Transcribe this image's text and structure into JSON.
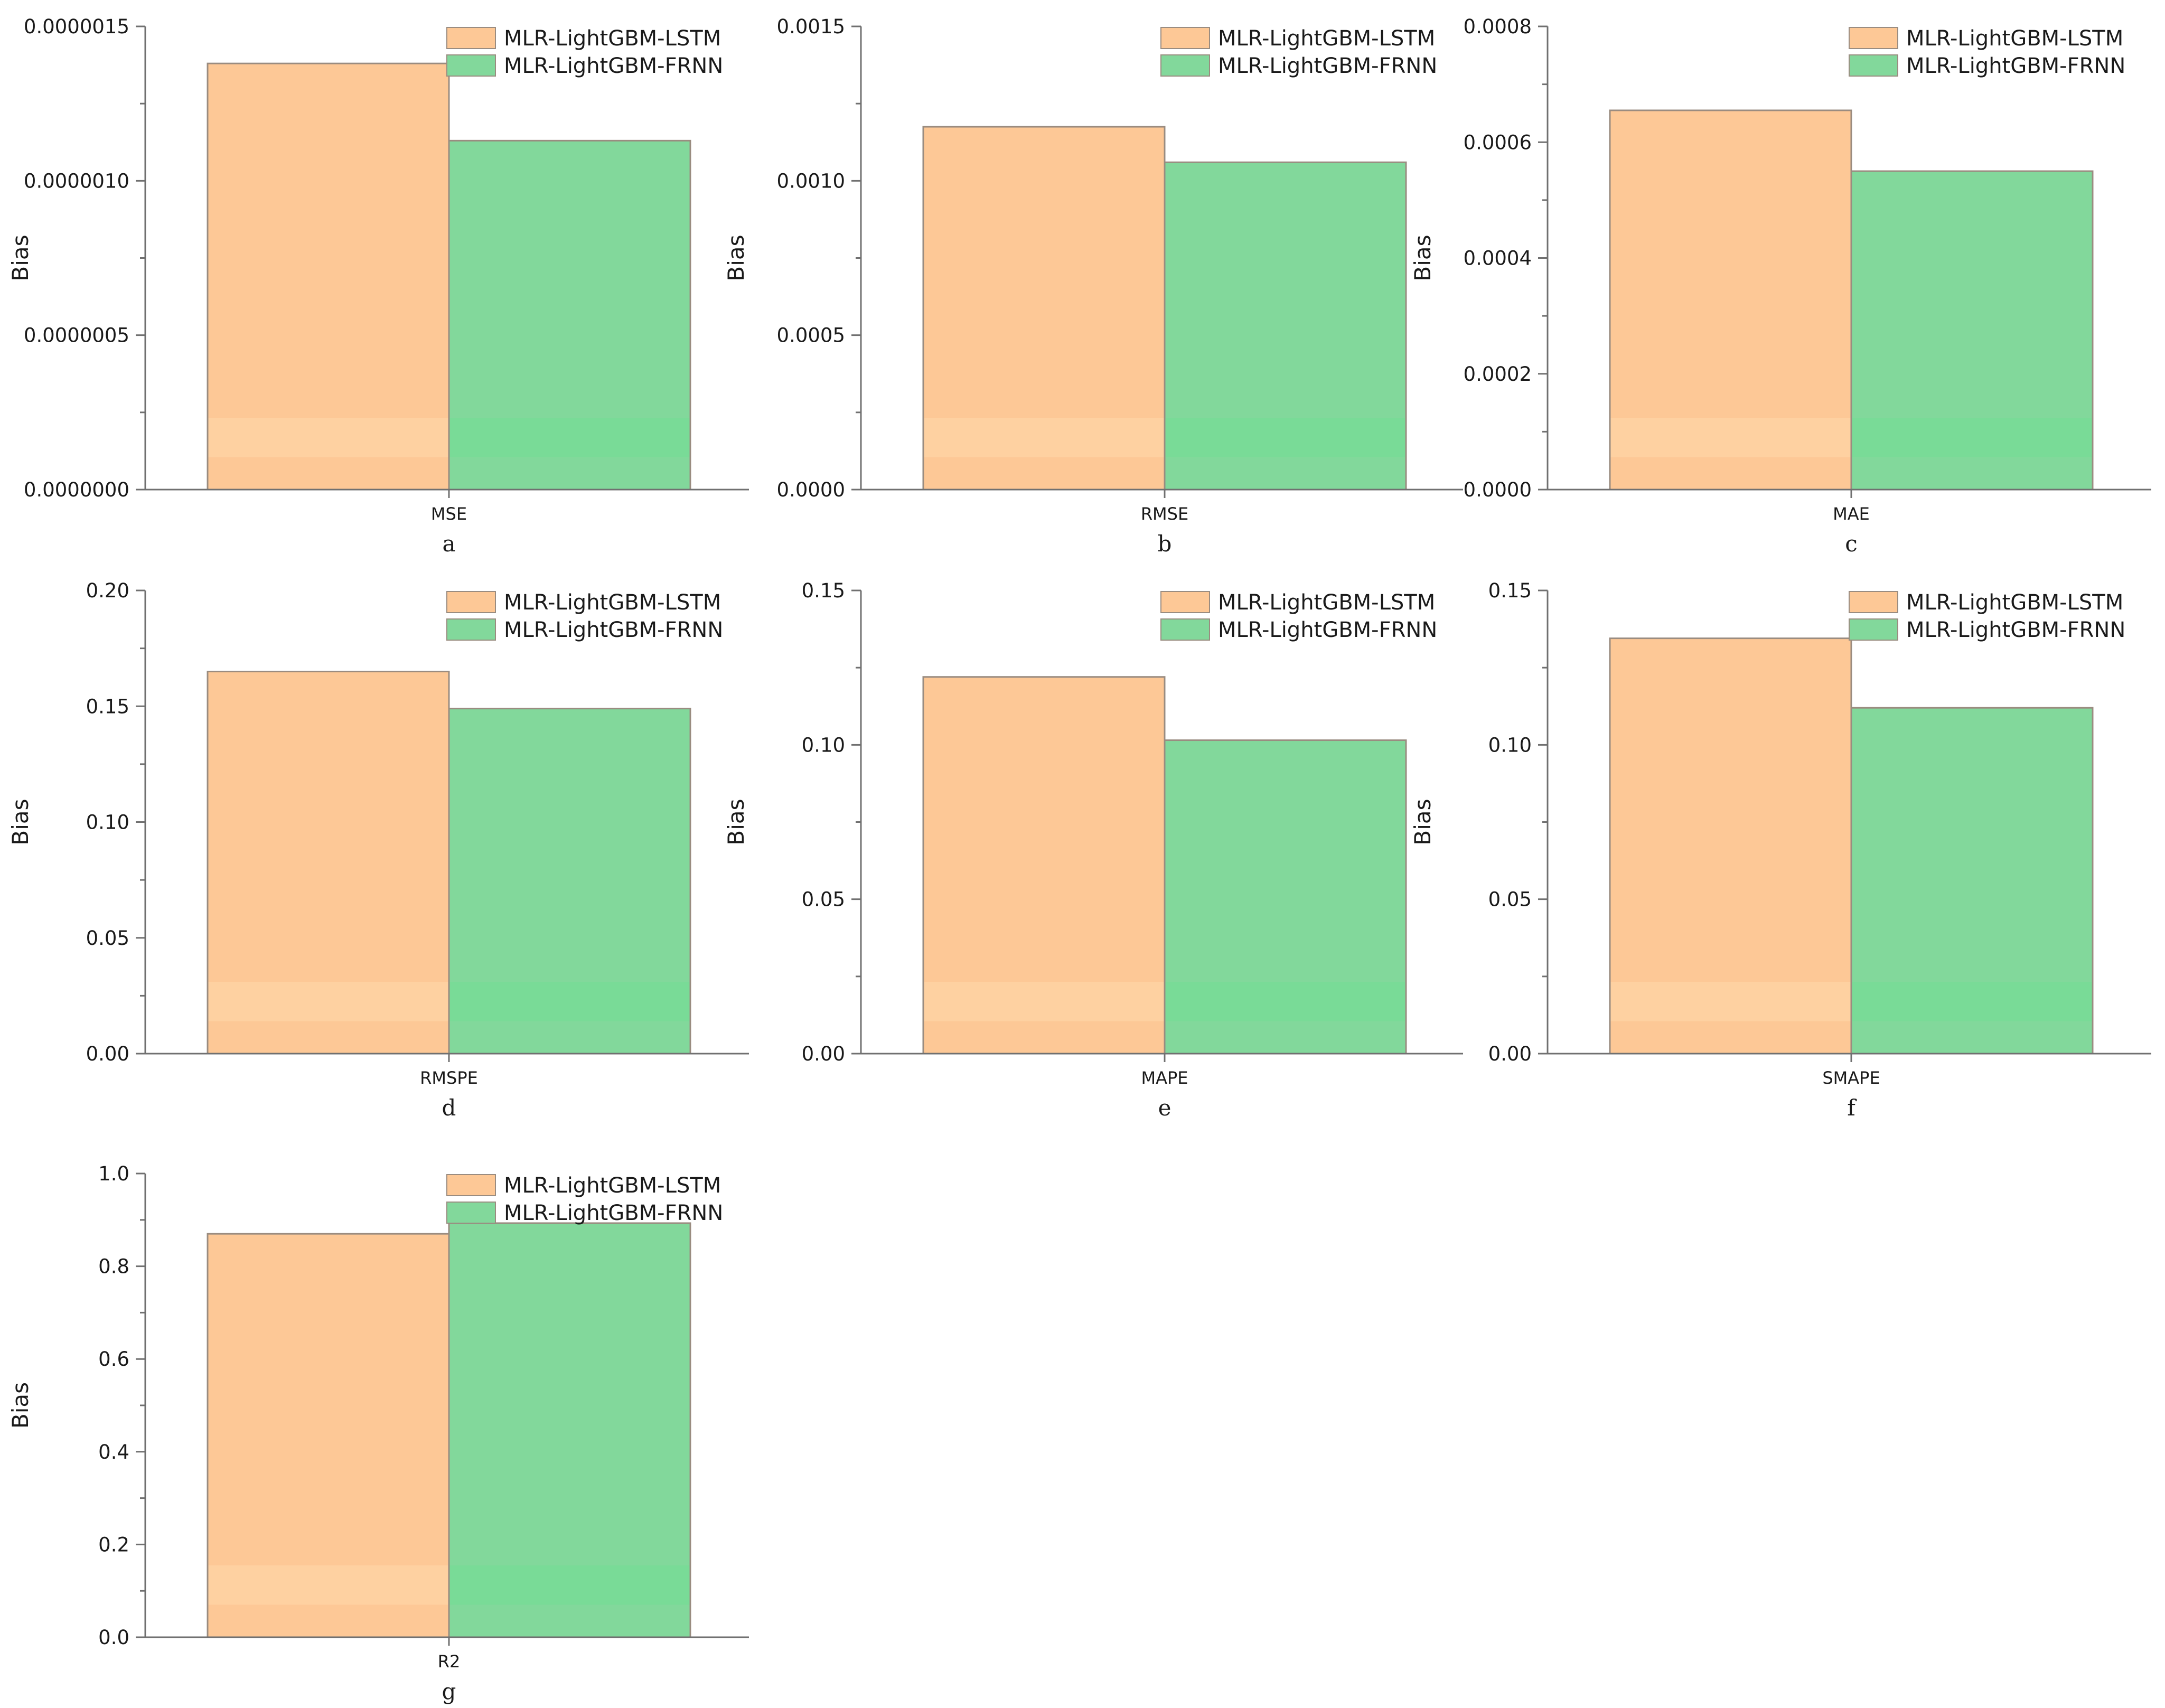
{
  "figure": {
    "series_colors": {
      "MLR-LightGBM-LSTM": "#FDC896",
      "MLR-LightGBM-FRNN": "#82D89B"
    },
    "accent_colors": {
      "MLR-LightGBM-LSTM": "#FFD9AB",
      "MLR-LightGBM-FRNN": "#73DE94"
    }
  },
  "chart_data": [
    {
      "type": "bar",
      "panel": "a",
      "categories": [
        "MSE"
      ],
      "series": [
        {
          "name": "MLR-LightGBM-LSTM",
          "values": [
            1.38e-06
          ]
        },
        {
          "name": "MLR-LightGBM-FRNN",
          "values": [
            1.13e-06
          ]
        }
      ],
      "ylabel": "Bias",
      "ylim": [
        0,
        1.5e-06
      ],
      "yticks": [
        0,
        5e-07,
        1e-06,
        1.5e-06
      ],
      "ytick_labels": [
        "0.0000000",
        "0.0000005",
        "0.0000010",
        "0.0000015"
      ],
      "legend": "top-right"
    },
    {
      "type": "bar",
      "panel": "b",
      "categories": [
        "RMSE"
      ],
      "series": [
        {
          "name": "MLR-LightGBM-LSTM",
          "values": [
            0.001175
          ]
        },
        {
          "name": "MLR-LightGBM-FRNN",
          "values": [
            0.00106
          ]
        }
      ],
      "ylabel": "Bias",
      "ylim": [
        0,
        0.0015
      ],
      "yticks": [
        0,
        0.0005,
        0.001,
        0.0015
      ],
      "ytick_labels": [
        "0.0000",
        "0.0005",
        "0.0010",
        "0.0015"
      ],
      "legend": "top-right"
    },
    {
      "type": "bar",
      "panel": "c",
      "categories": [
        "MAE"
      ],
      "series": [
        {
          "name": "MLR-LightGBM-LSTM",
          "values": [
            0.000655
          ]
        },
        {
          "name": "MLR-LightGBM-FRNN",
          "values": [
            0.00055
          ]
        }
      ],
      "ylabel": "Bias",
      "ylim": [
        0,
        0.0008
      ],
      "yticks": [
        0,
        0.0002,
        0.0004,
        0.0006,
        0.0008
      ],
      "ytick_labels": [
        "0.0000",
        "0.0002",
        "0.0004",
        "0.0006",
        "0.0008"
      ],
      "legend": "top-right"
    },
    {
      "type": "bar",
      "panel": "d",
      "categories": [
        "RMSPE"
      ],
      "series": [
        {
          "name": "MLR-LightGBM-LSTM",
          "values": [
            0.165
          ]
        },
        {
          "name": "MLR-LightGBM-FRNN",
          "values": [
            0.149
          ]
        }
      ],
      "ylabel": "Bias",
      "ylim": [
        0,
        0.2
      ],
      "yticks": [
        0,
        0.05,
        0.1,
        0.15,
        0.2
      ],
      "ytick_labels": [
        "0.00",
        "0.05",
        "0.10",
        "0.15",
        "0.20"
      ],
      "legend": "top-right"
    },
    {
      "type": "bar",
      "panel": "e",
      "categories": [
        "MAPE"
      ],
      "series": [
        {
          "name": "MLR-LightGBM-LSTM",
          "values": [
            0.122
          ]
        },
        {
          "name": "MLR-LightGBM-FRNN",
          "values": [
            0.1015
          ]
        }
      ],
      "ylabel": "Bias",
      "ylim": [
        0,
        0.15
      ],
      "yticks": [
        0,
        0.05,
        0.1,
        0.15
      ],
      "ytick_labels": [
        "0.00",
        "0.05",
        "0.10",
        "0.15"
      ],
      "legend": "top-right"
    },
    {
      "type": "bar",
      "panel": "f",
      "categories": [
        "SMAPE"
      ],
      "series": [
        {
          "name": "MLR-LightGBM-LSTM",
          "values": [
            0.1345
          ]
        },
        {
          "name": "MLR-LightGBM-FRNN",
          "values": [
            0.112
          ]
        }
      ],
      "ylabel": "Bias",
      "ylim": [
        0,
        0.15
      ],
      "yticks": [
        0,
        0.05,
        0.1,
        0.15
      ],
      "ytick_labels": [
        "0.00",
        "0.05",
        "0.10",
        "0.15"
      ],
      "legend": "top-right"
    },
    {
      "type": "bar",
      "panel": "g",
      "categories": [
        "R2"
      ],
      "series": [
        {
          "name": "MLR-LightGBM-LSTM",
          "values": [
            0.87
          ]
        },
        {
          "name": "MLR-LightGBM-FRNN",
          "values": [
            0.893
          ]
        }
      ],
      "ylabel": "Bias",
      "ylim": [
        0,
        1.0
      ],
      "yticks": [
        0,
        0.2,
        0.4,
        0.6,
        0.8,
        1.0
      ],
      "ytick_labels": [
        "0.0",
        "0.2",
        "0.4",
        "0.6",
        "0.8",
        "1.0"
      ],
      "legend": "top-right"
    }
  ]
}
